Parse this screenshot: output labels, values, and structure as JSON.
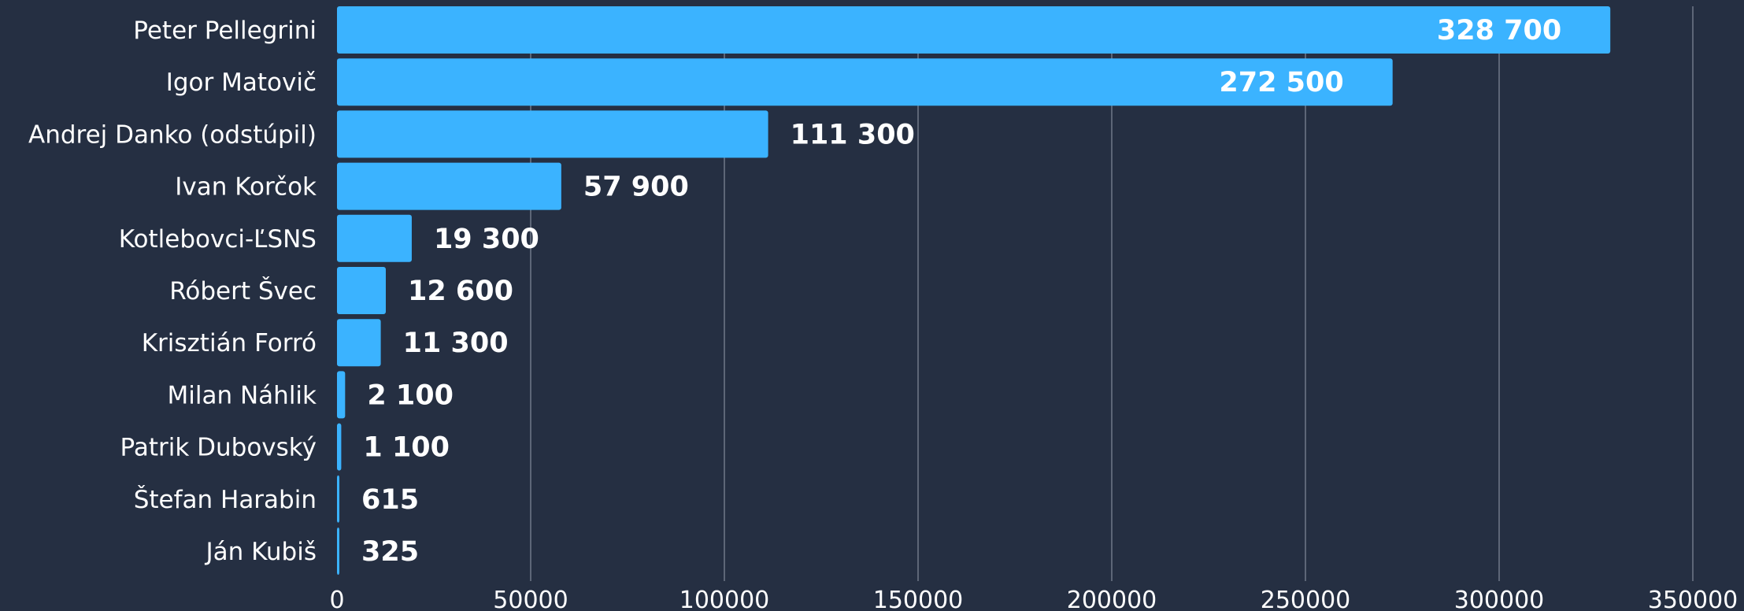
{
  "colors": {
    "background": "#252f42",
    "bar": "#3bb3ff",
    "text": "#ffffff",
    "grid": "#5d6677"
  },
  "chart_data": {
    "type": "bar",
    "orientation": "horizontal",
    "categories": [
      "Peter Pellegrini",
      "Igor Matovič",
      "Andrej Danko (odstúpil)",
      "Ivan Korčok",
      "Kotlebovci-ĽSNS",
      "Róbert Švec",
      "Krisztián Forró",
      "Milan Náhlik",
      "Patrik Dubovský",
      "Štefan Harabin",
      "Ján Kubiš"
    ],
    "values": [
      328700,
      272500,
      111300,
      57900,
      19300,
      12600,
      11300,
      2100,
      1100,
      615,
      325
    ],
    "value_labels": [
      "328 700",
      "272 500",
      "111 300",
      "57 900",
      "19 300",
      "12 600",
      "11 300",
      "2 100",
      "1 100",
      "615",
      "325"
    ],
    "value_label_position": [
      "inside",
      "inside",
      "outside",
      "outside",
      "outside",
      "outside",
      "outside",
      "outside",
      "outside",
      "outside",
      "outside"
    ],
    "xlim": [
      0,
      350000
    ],
    "xticks": [
      0,
      50000,
      100000,
      150000,
      200000,
      250000,
      300000,
      350000
    ],
    "xtick_labels": [
      "0",
      "50000",
      "100000",
      "150000",
      "200000",
      "250000",
      "300000",
      "350000"
    ],
    "title": "",
    "xlabel": "",
    "ylabel": "",
    "grid": "vertical"
  }
}
